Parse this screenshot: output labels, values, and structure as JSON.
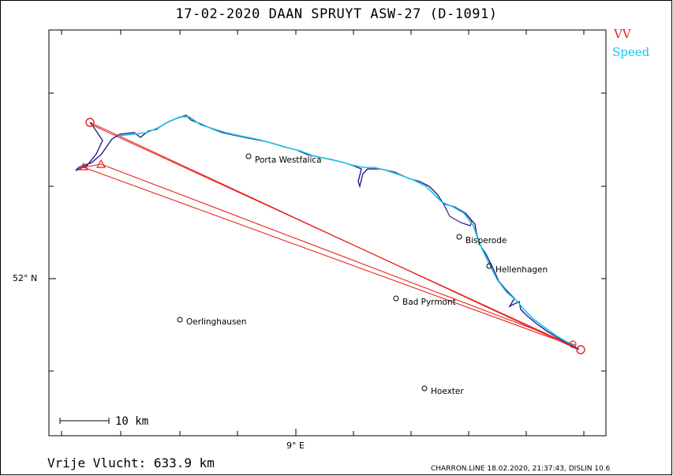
{
  "header": {
    "title": "17-02-2020   DAAN SPRUYT   ASW-27 (D-1091)"
  },
  "legend": {
    "vv_label": "VV",
    "speed_label": "Speed",
    "vv_color": "#e8221b",
    "speed_color": "#18c4e6"
  },
  "axes": {
    "lat_label": "52° N",
    "lon_label": "9° E"
  },
  "scale": {
    "label": "10 km"
  },
  "summary": {
    "distance_text": "Vrije Vlucht:  633.9 km"
  },
  "footer": {
    "text": "CHARRON.LINE 18.02.2020, 21:37:43, DISLIN 10.6"
  },
  "towns": [
    {
      "name": "Porta Westfalica"
    },
    {
      "name": "Bisperode"
    },
    {
      "name": "Hellenhagen"
    },
    {
      "name": "Bad Pyrmont"
    },
    {
      "name": "Oerlinghausen"
    },
    {
      "name": "Hoexter"
    }
  ]
}
